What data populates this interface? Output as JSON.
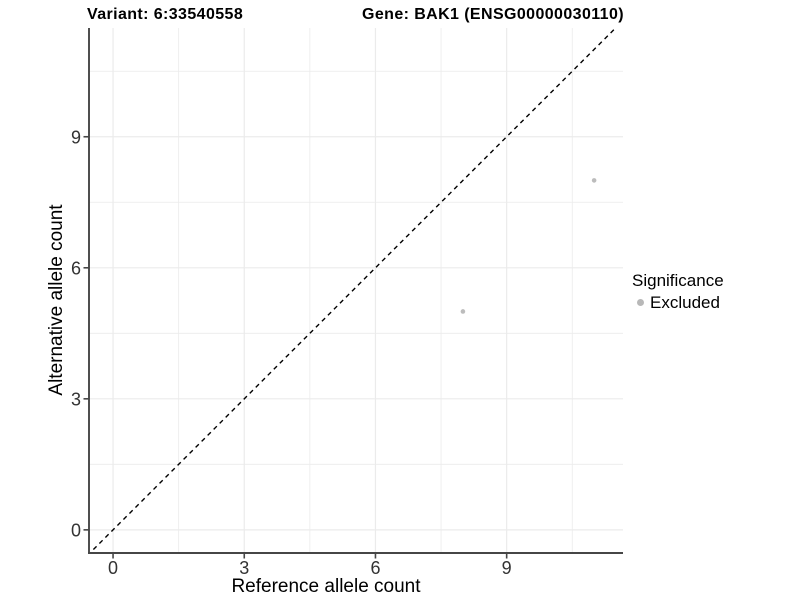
{
  "titles": {
    "variant": "Variant: 6:33540558",
    "gene": "Gene: BAK1 (ENSG00000030110)"
  },
  "legend": {
    "title": "Significance",
    "items": [
      {
        "label": "Excluded",
        "color": "#b8b8b8"
      }
    ],
    "position": "right"
  },
  "chart_data": {
    "type": "scatter",
    "title_left": "Variant: 6:33540558",
    "title_right": "Gene: BAK1 (ENSG00000030110)",
    "xlabel": "Reference allele count",
    "ylabel": "Alternative allele count",
    "series": [
      {
        "name": "Excluded",
        "color": "#bcbcbc",
        "points": [
          {
            "x": 8,
            "y": 5
          },
          {
            "x": 11,
            "y": 8
          }
        ]
      }
    ],
    "x_ticks": [
      0,
      3,
      6,
      9
    ],
    "y_ticks": [
      0,
      3,
      6,
      9
    ],
    "x_minor_ticks": [
      1.5,
      4.5,
      7.5,
      10.5
    ],
    "y_minor_ticks": [
      1.5,
      4.5,
      7.5,
      10.5
    ],
    "xlim": [
      -0.55,
      11.66
    ],
    "ylim": [
      -0.53,
      11.49
    ],
    "identity_line": {
      "slope": 1,
      "intercept": 0,
      "style": "dashed",
      "color": "#000000"
    },
    "grid": true,
    "legend_position": "right",
    "point_radius": 2.3,
    "colors": {
      "grid": "#ebebeb",
      "axis": "#464646",
      "tick_label": "#333333",
      "point": "#bcbcbc",
      "background": "#ffffff"
    }
  }
}
